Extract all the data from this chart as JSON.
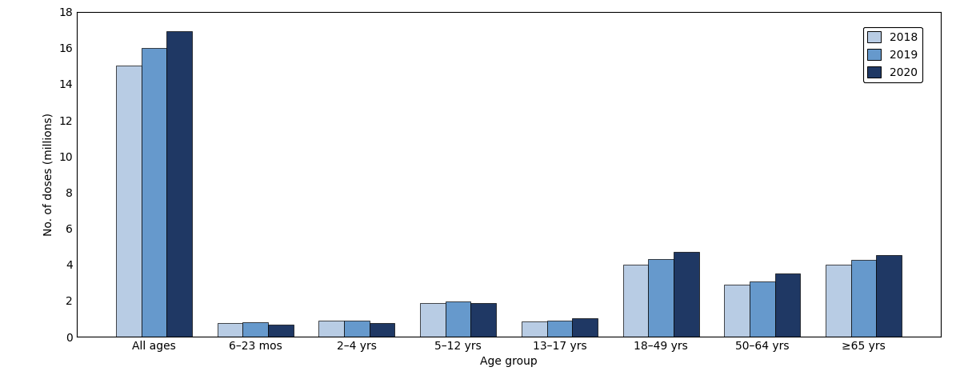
{
  "categories": [
    "All ages",
    "6–23 mos",
    "2–4 yrs",
    "5–12 yrs",
    "13–17 yrs",
    "18–49 yrs",
    "50–64 yrs",
    "≥65 yrs"
  ],
  "series": {
    "2018": [
      15.0,
      0.75,
      0.9,
      1.85,
      0.85,
      4.0,
      2.9,
      4.0
    ],
    "2019": [
      16.0,
      0.8,
      0.9,
      1.95,
      0.9,
      4.3,
      3.05,
      4.25
    ],
    "2020": [
      16.9,
      0.65,
      0.75,
      1.85,
      1.0,
      4.7,
      3.5,
      4.5
    ]
  },
  "colors": {
    "2018": "#b8cce4",
    "2019": "#6699cc",
    "2020": "#1f3864"
  },
  "ylabel": "No. of doses (millions)",
  "xlabel": "Age group",
  "ylim": [
    0,
    18
  ],
  "yticks": [
    0,
    2,
    4,
    6,
    8,
    10,
    12,
    14,
    16,
    18
  ],
  "legend_labels": [
    "2018",
    "2019",
    "2020"
  ],
  "bar_width": 0.25,
  "figsize": [
    12.0,
    4.84
  ],
  "dpi": 100
}
